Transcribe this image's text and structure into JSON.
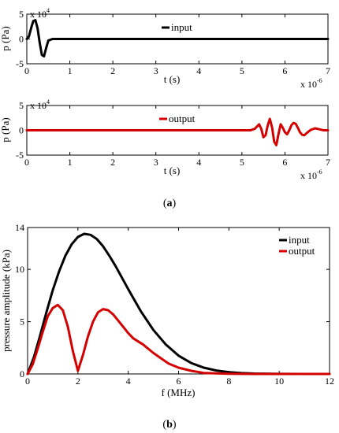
{
  "colors": {
    "input": "#000000",
    "output": "#d40000"
  },
  "chart_data": [
    {
      "type": "line",
      "ylabel": "p (Pa)",
      "xlabel": "t (s)",
      "y_exponent": "x 10^4",
      "x_exponent": "x 10^-6",
      "xlim": [
        0,
        7
      ],
      "ylim": [
        -5,
        5
      ],
      "xticks": [
        "0",
        "1",
        "2",
        "3",
        "4",
        "5",
        "6",
        "7"
      ],
      "yticks": [
        "-5",
        "0",
        "5"
      ],
      "y_exp_base": "x 10",
      "y_exp_pow": "4",
      "x_exp_base": "x 10",
      "x_exp_pow": "-6",
      "legend_position": "top-center",
      "series": [
        {
          "name": "input",
          "color": "#000000",
          "x": [
            0,
            0.05,
            0.1,
            0.15,
            0.2,
            0.25,
            0.3,
            0.35,
            0.4,
            0.45,
            0.5,
            0.6,
            0.8,
            7
          ],
          "y": [
            0,
            0.5,
            2.2,
            3.6,
            3.8,
            2.2,
            -0.8,
            -3.2,
            -3.5,
            -1.8,
            -0.3,
            0,
            0,
            0
          ]
        }
      ]
    },
    {
      "type": "line",
      "ylabel": "p (Pa)",
      "xlabel": "t (s)",
      "xlim": [
        0,
        7
      ],
      "ylim": [
        -5,
        5
      ],
      "xticks": [
        "0",
        "1",
        "2",
        "3",
        "4",
        "5",
        "6",
        "7"
      ],
      "yticks": [
        "-5",
        "0",
        "5"
      ],
      "y_exp_base": "x 10",
      "y_exp_pow": "4",
      "x_exp_base": "x 10",
      "x_exp_pow": "-6",
      "legend_position": "top-center",
      "series": [
        {
          "name": "output",
          "color": "#d40000",
          "x": [
            0,
            5.2,
            5.3,
            5.4,
            5.45,
            5.5,
            5.55,
            5.6,
            5.65,
            5.7,
            5.75,
            5.8,
            5.85,
            5.9,
            5.95,
            6.0,
            6.05,
            6.1,
            6.15,
            6.2,
            6.25,
            6.3,
            6.35,
            6.4,
            6.45,
            6.5,
            6.6,
            6.7,
            6.8,
            6.9,
            7.0
          ],
          "y": [
            0,
            0,
            0.3,
            1.2,
            0.3,
            -1.4,
            -1.0,
            1.0,
            2.3,
            0.6,
            -2.3,
            -3.0,
            -0.8,
            1.2,
            0.5,
            -0.4,
            -0.8,
            0.0,
            1.0,
            1.5,
            1.3,
            0.5,
            -0.4,
            -0.9,
            -1.0,
            -0.6,
            0.1,
            0.4,
            0.2,
            0.0,
            0
          ]
        }
      ]
    },
    {
      "type": "line",
      "ylabel": "pressure amplitude (kPa)",
      "xlabel": "f (MHz)",
      "xlim": [
        0,
        12
      ],
      "ylim": [
        0,
        14
      ],
      "xticks": [
        "0",
        "2",
        "4",
        "6",
        "8",
        "10",
        "12"
      ],
      "yticks": [
        "0",
        "5",
        "10",
        "14"
      ],
      "legend_position": "top-right",
      "series": [
        {
          "name": "input",
          "color": "#000000",
          "x": [
            0,
            0.25,
            0.5,
            0.75,
            1.0,
            1.25,
            1.5,
            1.75,
            2.0,
            2.25,
            2.5,
            2.75,
            3.0,
            3.25,
            3.5,
            3.75,
            4.0,
            4.5,
            5.0,
            5.5,
            6.0,
            6.5,
            7.0,
            7.5,
            8.0,
            8.5,
            9.0,
            10.0,
            11.0,
            12.0
          ],
          "y": [
            0,
            1.6,
            3.7,
            5.9,
            8.0,
            9.8,
            11.3,
            12.4,
            13.1,
            13.4,
            13.3,
            12.9,
            12.2,
            11.3,
            10.3,
            9.2,
            8.1,
            6.0,
            4.2,
            2.8,
            1.75,
            1.05,
            0.6,
            0.33,
            0.17,
            0.08,
            0.04,
            0.01,
            0,
            0
          ]
        },
        {
          "name": "output",
          "color": "#d40000",
          "x": [
            0,
            0.2,
            0.4,
            0.6,
            0.8,
            1.0,
            1.2,
            1.4,
            1.6,
            1.8,
            2.0,
            2.2,
            2.4,
            2.6,
            2.8,
            3.0,
            3.2,
            3.4,
            3.6,
            3.8,
            4.0,
            4.2,
            4.4,
            4.6,
            4.8,
            5.0,
            5.3,
            5.6,
            6.0,
            6.5,
            7.0,
            7.5,
            8.0,
            9.0,
            10.0,
            12.0
          ],
          "y": [
            0,
            0.9,
            2.4,
            4.0,
            5.5,
            6.3,
            6.6,
            6.1,
            4.5,
            2.2,
            0.3,
            1.8,
            3.6,
            5.0,
            5.9,
            6.2,
            6.1,
            5.7,
            5.1,
            4.5,
            3.9,
            3.4,
            3.1,
            2.8,
            2.4,
            2.0,
            1.5,
            1.0,
            0.6,
            0.3,
            0.1,
            0.05,
            0.02,
            0,
            0,
            0
          ]
        }
      ]
    }
  ],
  "captions": {
    "a_label": "a",
    "b_label": "b"
  }
}
